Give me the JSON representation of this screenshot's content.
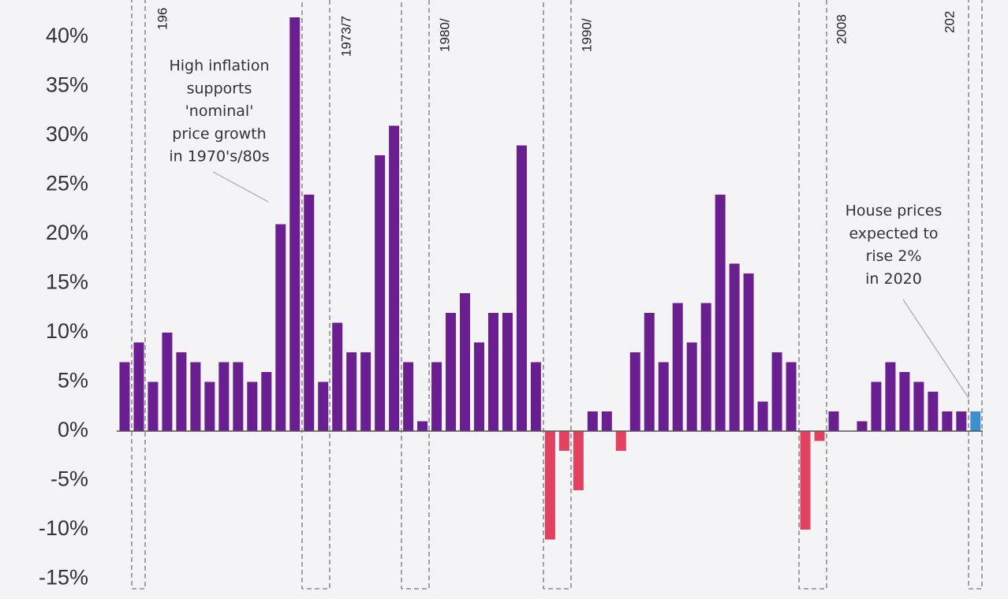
{
  "chart_data": {
    "type": "bar",
    "values": [
      7,
      9,
      5,
      10,
      8,
      7,
      5,
      7,
      7,
      5,
      6,
      21,
      42,
      24,
      5,
      11,
      8,
      8,
      28,
      31,
      7,
      1,
      7,
      12,
      14,
      9,
      12,
      12,
      29,
      7,
      -11,
      -2,
      -6,
      2,
      2,
      -2,
      8,
      12,
      7,
      13,
      9,
      13,
      24,
      17,
      16,
      3,
      8,
      7,
      -10,
      -1,
      2,
      0,
      1,
      5,
      7,
      6,
      5,
      4,
      2,
      2,
      2
    ],
    "color": "#6a1f91",
    "negative_color": "#e2415f",
    "last_color": "#3b8fd1",
    "ylim": [
      -15,
      43
    ],
    "yticks": [
      {
        "value": -15,
        "label": "-15%"
      },
      {
        "value": -10,
        "label": "-10%"
      },
      {
        "value": -5,
        "label": "-5%"
      },
      {
        "value": 0,
        "label": "0%"
      },
      {
        "value": 5,
        "label": "5%"
      },
      {
        "value": 10,
        "label": "10%"
      },
      {
        "value": 15,
        "label": "15%"
      },
      {
        "value": 20,
        "label": "20%"
      },
      {
        "value": 25,
        "label": "25%"
      },
      {
        "value": 30,
        "label": "30%"
      },
      {
        "value": 35,
        "label": "35%"
      },
      {
        "value": 40,
        "label": "40%"
      }
    ],
    "period_labels": [
      "196",
      "1973/7",
      "1980/",
      "1990/",
      "2008",
      "202"
    ],
    "annotations": [
      [
        "High inflation",
        "supports",
        "'nominal'",
        "price growth",
        "in 1970's/80s"
      ],
      [
        "House prices",
        "expected to",
        "rise 2%",
        "in 2020"
      ]
    ]
  }
}
